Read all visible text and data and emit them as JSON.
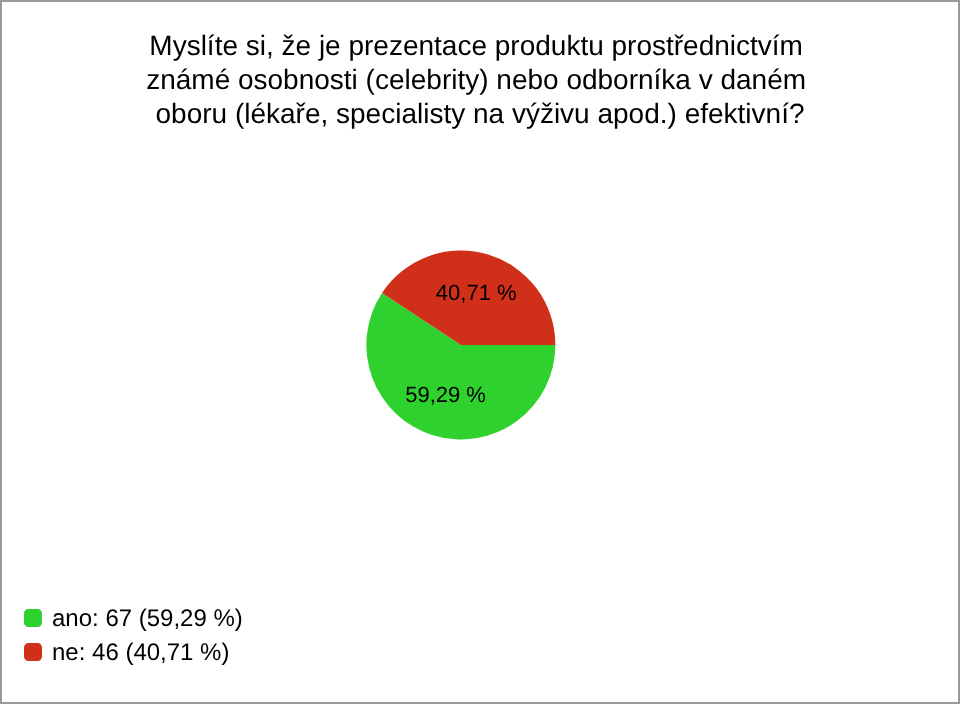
{
  "chart_data": {
    "type": "pie",
    "title": "Myslíte si, že je prezentace produktu prostřednictvím známé osobnosti (celebrity) nebo odborníka v daném oboru (lékaře, specialisty na výživu apod.) efektivní?",
    "categories": [
      "ano: 67 (59,29 %)",
      "ne: 46 (40,71 %)"
    ],
    "values": [
      59.29,
      40.71
    ],
    "value_labels": [
      "59,29 %",
      "40,71 %"
    ],
    "colors": [
      "#2fd12f",
      "#d0301a"
    ],
    "legend": "bottom left"
  }
}
